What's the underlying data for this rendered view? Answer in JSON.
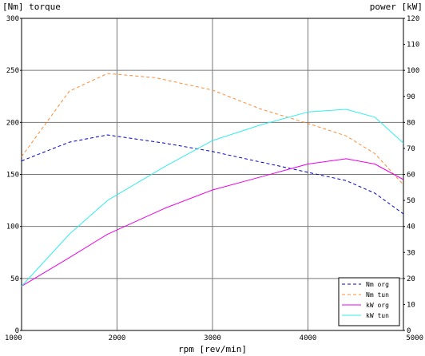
{
  "chart_data": {
    "type": "line",
    "title": "",
    "xlabel": "rpm [rev/min]",
    "ylabel_left": "[Nm] torque",
    "ylabel_right": "power [kW]",
    "xlim": [
      1000,
      5000
    ],
    "ylim_left": [
      0,
      300
    ],
    "ylim_right": [
      0,
      120
    ],
    "x_ticks": [
      1000,
      2000,
      3000,
      4000,
      5000
    ],
    "y_left_ticks": [
      0,
      50,
      100,
      150,
      200,
      250,
      300
    ],
    "y_right_ticks": [
      0,
      10,
      20,
      30,
      40,
      50,
      60,
      70,
      80,
      90,
      100,
      110,
      120
    ],
    "grid": true,
    "legend_position": "bottom-right",
    "series": [
      {
        "name": "Nm org",
        "axis": "left",
        "color": "#0000cc",
        "style": "dashed",
        "points": [
          [
            1000,
            163
          ],
          [
            1500,
            181
          ],
          [
            1900,
            188
          ],
          [
            2500,
            180
          ],
          [
            3000,
            172
          ],
          [
            3500,
            162
          ],
          [
            4000,
            152
          ],
          [
            4400,
            144
          ],
          [
            4700,
            132
          ],
          [
            5000,
            112
          ]
        ]
      },
      {
        "name": "Nm tun",
        "axis": "left",
        "color": "#ff8c33",
        "style": "dashed",
        "points": [
          [
            1000,
            167
          ],
          [
            1500,
            230
          ],
          [
            1900,
            247
          ],
          [
            2400,
            243
          ],
          [
            3000,
            231
          ],
          [
            3500,
            213
          ],
          [
            4000,
            199
          ],
          [
            4400,
            187
          ],
          [
            4700,
            170
          ],
          [
            5000,
            140
          ]
        ]
      },
      {
        "name": "kW org",
        "axis": "right",
        "color": "#ee00ee",
        "style": "solid",
        "points": [
          [
            1000,
            17
          ],
          [
            1500,
            28
          ],
          [
            1900,
            37
          ],
          [
            2500,
            47
          ],
          [
            3000,
            54
          ],
          [
            3500,
            59
          ],
          [
            4000,
            64
          ],
          [
            4400,
            66
          ],
          [
            4700,
            64
          ],
          [
            5000,
            58
          ]
        ]
      },
      {
        "name": "kW tun",
        "axis": "right",
        "color": "#33eeee",
        "style": "solid",
        "points": [
          [
            1000,
            17
          ],
          [
            1500,
            37
          ],
          [
            1900,
            50
          ],
          [
            2500,
            63
          ],
          [
            3000,
            73
          ],
          [
            3500,
            79
          ],
          [
            4000,
            84
          ],
          [
            4400,
            85
          ],
          [
            4700,
            82
          ],
          [
            5000,
            72
          ]
        ]
      }
    ]
  }
}
